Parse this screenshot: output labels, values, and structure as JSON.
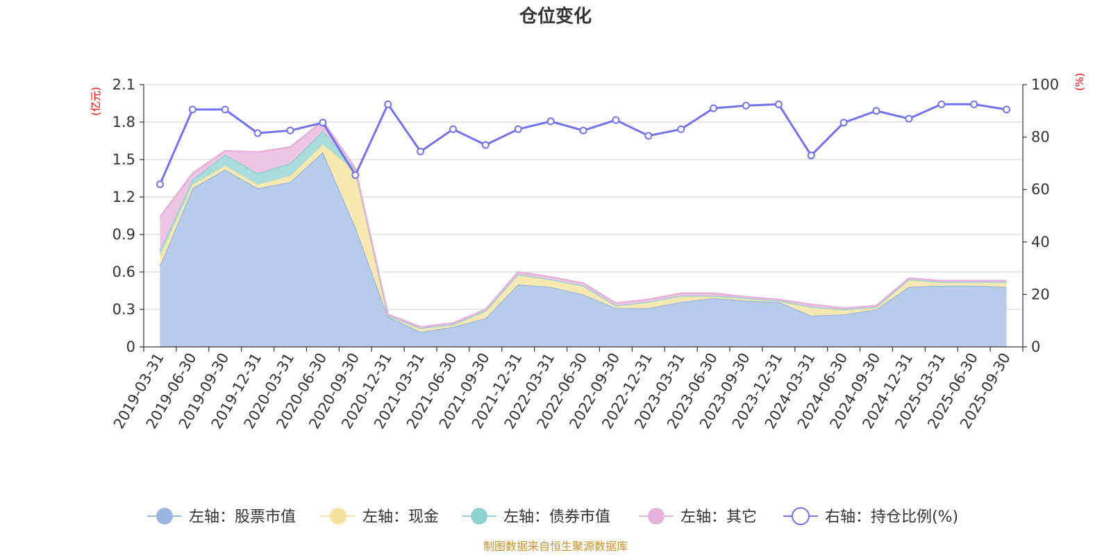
{
  "chart_data": {
    "type": "area",
    "title": "仓位变化",
    "left_axis_unit": "(亿元)",
    "right_axis_unit": "(%)",
    "source": "制图数据来自恒生聚源数据库",
    "left_ylim": [
      0,
      2.1
    ],
    "left_ticks": [
      0,
      0.3,
      0.6,
      0.9,
      1.2,
      1.5,
      1.8,
      2.1
    ],
    "left_tick_labels": [
      "0",
      "0.3",
      "0.6",
      "0.9",
      "1.2",
      "1.5",
      "1.8",
      "2.1"
    ],
    "right_ylim": [
      0,
      100
    ],
    "right_ticks": [
      0,
      20,
      40,
      60,
      80,
      100
    ],
    "right_tick_labels": [
      "0",
      "20",
      "40",
      "60",
      "80",
      "100"
    ],
    "categories": [
      "2019-03-31",
      "2019-06-30",
      "2019-09-30",
      "2019-12-31",
      "2020-03-31",
      "2020-06-30",
      "2020-09-30",
      "2020-12-31",
      "2021-03-31",
      "2021-06-30",
      "2021-09-30",
      "2021-12-31",
      "2022-03-31",
      "2022-06-30",
      "2022-09-30",
      "2022-12-31",
      "2023-03-31",
      "2023-06-30",
      "2023-09-30",
      "2023-12-31",
      "2024-03-31",
      "2024-06-30",
      "2024-09-30",
      "2024-12-31",
      "2025-03-31",
      "2025-06-30",
      "2025-09-30"
    ],
    "series": [
      {
        "name": "左轴：股票市值",
        "axis": "left",
        "color": "#9bb7e0",
        "fill": "#b7cbea",
        "values": [
          0.65,
          1.27,
          1.42,
          1.27,
          1.32,
          1.56,
          0.96,
          0.24,
          0.12,
          0.16,
          0.23,
          0.5,
          0.48,
          0.42,
          0.31,
          0.31,
          0.36,
          0.39,
          0.37,
          0.36,
          0.25,
          0.26,
          0.3,
          0.48,
          0.49,
          0.49,
          0.48
        ]
      },
      {
        "name": "左轴：现金",
        "axis": "left",
        "color": "#f7e3a0",
        "fill": "#f8e8b2",
        "values": [
          0.08,
          0.03,
          0.03,
          0.03,
          0.05,
          0.06,
          0.45,
          0.01,
          0.03,
          0.02,
          0.06,
          0.08,
          0.06,
          0.07,
          0.02,
          0.05,
          0.05,
          0.02,
          0.02,
          0.01,
          0.07,
          0.04,
          0.02,
          0.06,
          0.03,
          0.03,
          0.04
        ]
      },
      {
        "name": "左轴：债券市值",
        "axis": "left",
        "color": "#8fd3d0",
        "fill": "#a9dcdb",
        "values": [
          0.04,
          0.04,
          0.09,
          0.09,
          0.1,
          0.11,
          0.01,
          0,
          0,
          0,
          0,
          0,
          0,
          0,
          0,
          0,
          0,
          0,
          0,
          0,
          0,
          0,
          0,
          0,
          0,
          0,
          0
        ]
      },
      {
        "name": "左轴：其它",
        "axis": "left",
        "color": "#e5b3d9",
        "fill": "#ebc5e2",
        "values": [
          0.27,
          0.05,
          0.03,
          0.17,
          0.13,
          0.08,
          0.01,
          0.01,
          0.01,
          0.01,
          0.01,
          0.02,
          0.02,
          0.02,
          0.02,
          0.02,
          0.02,
          0.02,
          0.01,
          0.01,
          0.02,
          0.01,
          0.01,
          0.01,
          0.01,
          0.01,
          0.01
        ]
      },
      {
        "name": "右轴：持仓比例(%)",
        "axis": "right",
        "color": "#7272ee",
        "values": [
          62,
          90.5,
          90.5,
          81.5,
          82.5,
          85.5,
          65.5,
          92.5,
          74.5,
          83,
          77,
          83,
          86,
          82.5,
          86.5,
          80.5,
          83,
          91,
          92,
          92.5,
          73,
          85.5,
          90,
          87,
          92.5,
          92.5,
          90.5
        ]
      }
    ]
  }
}
